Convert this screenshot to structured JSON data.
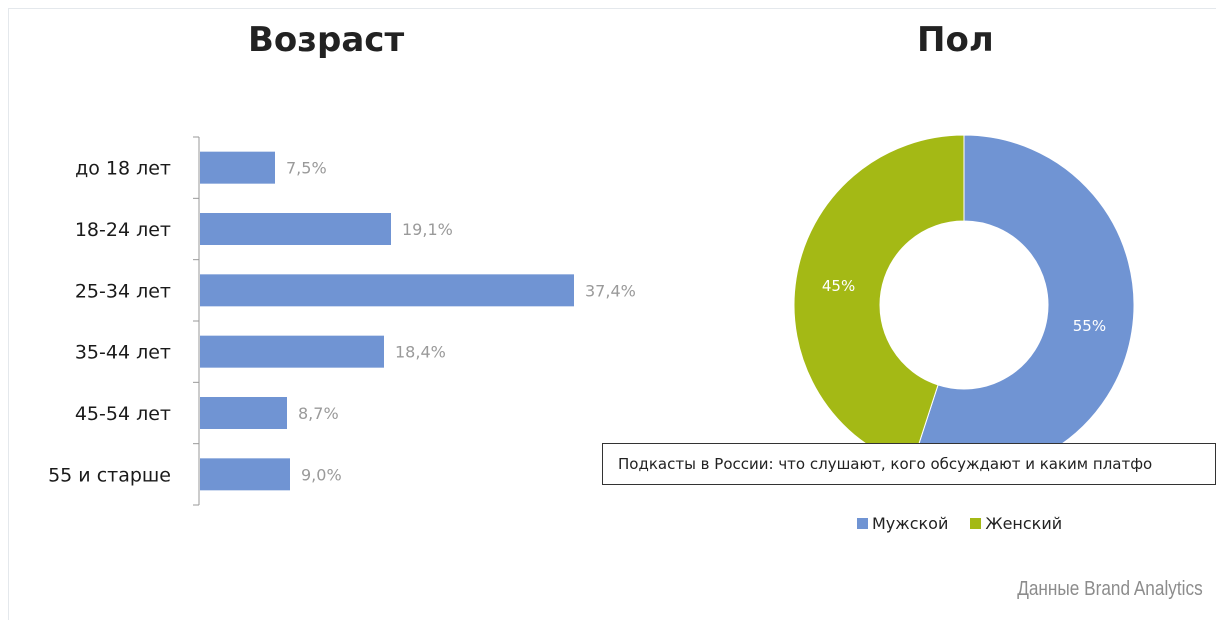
{
  "colors": {
    "bar": "#7094d3",
    "male": "#7094d3",
    "female": "#a4b915",
    "axis": "#999999",
    "value_label": "#9a9a9a"
  },
  "tooltip": "Подкасты в России: что слушают, кого обсуждают и каким платфо",
  "source": "Данные Brand Analytics",
  "chart_data": [
    {
      "type": "bar",
      "orientation": "horizontal",
      "title": "Возраст",
      "categories": [
        "до 18 лет",
        "18-24 лет",
        "25-34 лет",
        "35-44 лет",
        "45-54 лет",
        "55 и старше"
      ],
      "values": [
        7.5,
        19.1,
        37.4,
        18.4,
        8.7,
        9.0
      ],
      "value_labels": [
        "7,5%",
        "19,1%",
        "37,4%",
        "18,4%",
        "8,7%",
        "9,0%"
      ],
      "xlim": [
        0,
        40
      ],
      "grid": false,
      "color": "#7094d3"
    },
    {
      "type": "pie",
      "donut": true,
      "title": "Пол",
      "categories": [
        "Мужской",
        "Женский"
      ],
      "values": [
        55,
        45
      ],
      "value_labels": [
        "55%",
        "45%"
      ],
      "colors": [
        "#7094d3",
        "#a4b915"
      ],
      "legend": "bottom"
    }
  ]
}
